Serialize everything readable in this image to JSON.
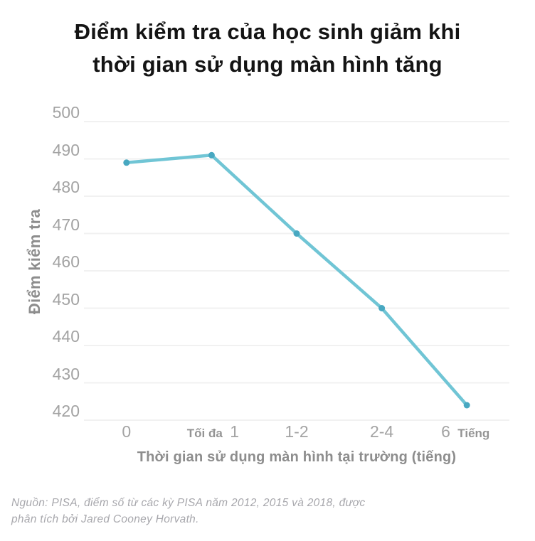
{
  "title": {
    "line1": "Điểm kiểm tra của học sinh giảm khi",
    "line2": "thời gian sử dụng màn hình tăng"
  },
  "chart_data": {
    "type": "line",
    "title": "Điểm kiểm tra của học sinh giảm khi thời gian sử dụng màn hình tăng",
    "categories": [
      "0",
      "Tối đa 1",
      "1-2",
      "2-4",
      "6 Tiếng"
    ],
    "values": [
      489,
      491,
      470,
      450,
      424
    ],
    "ylabel": "Điểm kiểm tra",
    "xlabel": "Thời gian sử dụng màn hình tại trường (tiếng)",
    "y_ticks": [
      500,
      490,
      480,
      470,
      460,
      450,
      440,
      430,
      420
    ],
    "ylim": [
      420,
      500
    ],
    "grid": "horizontal-only",
    "legend": "none",
    "line_color": "#70c5d5",
    "marker_color": "#48a8c1",
    "gridline_color": "#f1f1f1",
    "x_ticks": [
      {
        "parts": [
          {
            "text": "0",
            "style": "num"
          }
        ]
      },
      {
        "parts": [
          {
            "text": "Tối đa",
            "style": "label"
          },
          {
            "text": "1",
            "style": "num"
          }
        ]
      },
      {
        "parts": [
          {
            "text": "1-2",
            "style": "num"
          }
        ]
      },
      {
        "parts": [
          {
            "text": "2-4",
            "style": "num"
          }
        ]
      },
      {
        "parts": [
          {
            "text": "6",
            "style": "num"
          },
          {
            "text": "Tiếng",
            "style": "label"
          }
        ]
      }
    ]
  },
  "source": {
    "line1": "Nguồn: PISA, điểm số từ các kỳ PISA năm 2012, 2015 và 2018, được",
    "line2": "phân tích bởi Jared Cooney Horvath."
  }
}
